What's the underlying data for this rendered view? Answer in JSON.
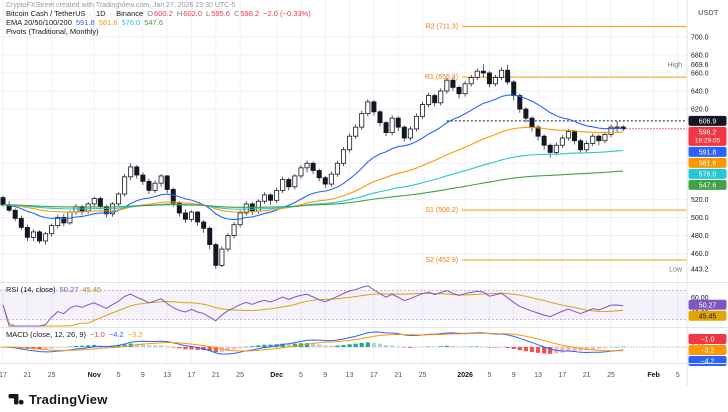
{
  "watermark": "CryptoFXStreet created with TradingView.com, Jan 27, 2026 23:30 UTC-5",
  "quote_label": "USDT",
  "colors": {
    "negative": "#f23645",
    "candle": "#131722",
    "pivot": "#ff9800"
  },
  "legend": {
    "symbol": {
      "title": "Bitcoin Cash / TetherUS",
      "separator": "·",
      "interval": "1D",
      "exchange": "Binance",
      "ohlc": [
        {
          "label": "O",
          "value": "600.2"
        },
        {
          "label": "H",
          "value": "602.0"
        },
        {
          "label": "L",
          "value": "595.6"
        },
        {
          "label": "C",
          "value": "598.2"
        }
      ],
      "change": "−2.0 (−0.33%)"
    },
    "ema": {
      "name": "EMA 20/50/100/200",
      "values": [
        {
          "text": "591.8",
          "color": "#2962ff"
        },
        {
          "text": "581.6",
          "color": "#ff9800"
        },
        {
          "text": "576.0",
          "color": "#26c6da"
        },
        {
          "text": "547.6",
          "color": "#43a047"
        }
      ]
    },
    "pivots": {
      "name": "Pivots (Traditional, Monthly)"
    }
  },
  "rsi_legend": {
    "name": "RSI (14, close)",
    "value": "50.27",
    "value_color": "#7e57c2",
    "ma_value": "45.45",
    "ma_color": "#b8860b"
  },
  "macd_legend": {
    "name": "MACD (close, 12, 26, 9)",
    "hist": "−1.0",
    "hist_color": "#f23645",
    "macd": "−4.2",
    "macd_color": "#2962ff",
    "signal": "−3.2",
    "signal_color": "#ff9800"
  },
  "logo": {
    "text": "TradingView"
  },
  "chart_data": {
    "type": "candlestick",
    "title": "Bitcoin Cash / TetherUS, 1D, Binance",
    "x_total_slots": 113,
    "x_ticks": [
      {
        "i": 0,
        "label": "17"
      },
      {
        "i": 4,
        "label": "21"
      },
      {
        "i": 8,
        "label": "25"
      },
      {
        "i": 15,
        "label": "Nov",
        "strong": true
      },
      {
        "i": 19,
        "label": "5"
      },
      {
        "i": 23,
        "label": "9"
      },
      {
        "i": 27,
        "label": "13"
      },
      {
        "i": 31,
        "label": "17"
      },
      {
        "i": 35,
        "label": "21"
      },
      {
        "i": 39,
        "label": "25"
      },
      {
        "i": 45,
        "label": "Dec",
        "strong": true
      },
      {
        "i": 49,
        "label": "5"
      },
      {
        "i": 53,
        "label": "9"
      },
      {
        "i": 57,
        "label": "13"
      },
      {
        "i": 61,
        "label": "17"
      },
      {
        "i": 65,
        "label": "21"
      },
      {
        "i": 69,
        "label": "25"
      },
      {
        "i": 76,
        "label": "2026",
        "strong": true
      },
      {
        "i": 80,
        "label": "5"
      },
      {
        "i": 84,
        "label": "9"
      },
      {
        "i": 88,
        "label": "13"
      },
      {
        "i": 92,
        "label": "17"
      },
      {
        "i": 96,
        "label": "21"
      },
      {
        "i": 100,
        "label": "25"
      },
      {
        "i": 107,
        "label": "Feb",
        "strong": true
      },
      {
        "i": 111,
        "label": "5"
      }
    ],
    "y_domain": [
      433,
      712
    ],
    "y_ticks": [
      700,
      680,
      660,
      640,
      620,
      560,
      520,
      500,
      480,
      460
    ],
    "high": {
      "label": "High",
      "value": 669.6,
      "text": "669.6"
    },
    "low": {
      "label": "Low",
      "value": 443.2,
      "text": "443.2"
    },
    "last_price": {
      "value": 598.2,
      "text": "598.2",
      "countdown": "19:29:05",
      "direction": "down"
    },
    "dotted_level": {
      "value": 606.9,
      "text": "606.9",
      "from_index": 73
    },
    "pivot_levels": [
      {
        "label": "R2 (711.3)",
        "value": 711.3
      },
      {
        "label": "R1 (655.4)",
        "value": 655.4
      },
      {
        "label": "S1 (508.2)",
        "value": 508.2
      },
      {
        "label": "S2 (452.9)",
        "value": 452.9
      }
    ],
    "pivot_start_index": 76,
    "ema_periods": [
      20,
      50,
      100,
      200
    ],
    "ema_badges": [
      {
        "text": "591.8",
        "value": 591.8,
        "color": "#2962ff"
      },
      {
        "text": "581.6",
        "value": 581.6,
        "color": "#ff9800"
      },
      {
        "text": "576.0",
        "value": 576.0,
        "color": "#26c6da"
      },
      {
        "text": "547.6",
        "value": 547.6,
        "color": "#43a047"
      }
    ],
    "candles": [
      [
        522,
        524,
        512,
        514
      ],
      [
        514,
        518,
        506,
        508
      ],
      [
        508,
        510,
        496,
        499
      ],
      [
        499,
        502,
        486,
        489
      ],
      [
        489,
        492,
        474,
        478
      ],
      [
        478,
        487,
        474,
        484
      ],
      [
        484,
        486,
        471,
        474
      ],
      [
        474,
        484,
        470,
        482
      ],
      [
        482,
        493,
        479,
        491
      ],
      [
        491,
        503,
        488,
        500
      ],
      [
        500,
        504,
        490,
        494
      ],
      [
        494,
        508,
        492,
        506
      ],
      [
        506,
        515,
        503,
        512
      ],
      [
        512,
        514,
        503,
        507
      ],
      [
        507,
        517,
        504,
        515
      ],
      [
        515,
        523,
        511,
        521
      ],
      [
        521,
        523,
        509,
        512
      ],
      [
        512,
        514,
        500,
        504
      ],
      [
        504,
        517,
        501,
        515
      ],
      [
        515,
        528,
        512,
        526
      ],
      [
        526,
        548,
        523,
        545
      ],
      [
        545,
        560,
        541,
        556
      ],
      [
        556,
        558,
        543,
        547
      ],
      [
        547,
        550,
        536,
        540
      ],
      [
        540,
        543,
        526,
        530
      ],
      [
        530,
        541,
        527,
        538
      ],
      [
        538,
        548,
        534,
        546
      ],
      [
        546,
        547,
        527,
        531
      ],
      [
        531,
        533,
        512,
        516
      ],
      [
        516,
        518,
        501,
        505
      ],
      [
        505,
        509,
        494,
        498
      ],
      [
        498,
        508,
        495,
        506
      ],
      [
        506,
        507,
        491,
        495
      ],
      [
        495,
        497,
        483,
        488
      ],
      [
        488,
        490,
        465,
        470
      ],
      [
        470,
        472,
        443.2,
        447
      ],
      [
        447,
        468,
        445,
        465
      ],
      [
        465,
        483,
        462,
        480
      ],
      [
        480,
        495,
        477,
        492
      ],
      [
        492,
        508,
        489,
        505
      ],
      [
        505,
        518,
        502,
        515
      ],
      [
        515,
        517,
        503,
        507
      ],
      [
        507,
        520,
        504,
        518
      ],
      [
        518,
        528,
        515,
        525
      ],
      [
        525,
        527,
        514,
        519
      ],
      [
        519,
        533,
        516,
        530
      ],
      [
        530,
        545,
        527,
        542
      ],
      [
        542,
        544,
        530,
        534
      ],
      [
        534,
        548,
        531,
        546
      ],
      [
        546,
        558,
        543,
        555
      ],
      [
        555,
        563,
        550,
        560
      ],
      [
        560,
        562,
        548,
        552
      ],
      [
        552,
        554,
        540,
        544
      ],
      [
        544,
        546,
        533,
        537
      ],
      [
        537,
        551,
        534,
        548
      ],
      [
        548,
        563,
        545,
        560
      ],
      [
        560,
        578,
        557,
        575
      ],
      [
        575,
        593,
        572,
        590
      ],
      [
        590,
        603,
        587,
        600
      ],
      [
        600,
        618,
        597,
        615
      ],
      [
        615,
        631,
        612,
        628
      ],
      [
        628,
        630,
        613,
        617
      ],
      [
        617,
        619,
        601,
        605
      ],
      [
        605,
        607,
        590,
        594
      ],
      [
        594,
        613,
        591,
        610
      ],
      [
        610,
        612,
        596,
        600
      ],
      [
        600,
        602,
        584,
        588
      ],
      [
        588,
        601,
        585,
        598
      ],
      [
        598,
        615,
        595,
        612
      ],
      [
        612,
        628,
        609,
        625
      ],
      [
        625,
        638,
        622,
        635
      ],
      [
        635,
        637,
        623,
        627
      ],
      [
        627,
        643,
        624,
        640
      ],
      [
        640,
        655,
        637,
        652
      ],
      [
        652,
        654,
        640,
        644
      ],
      [
        644,
        646,
        632,
        637
      ],
      [
        637,
        651,
        634,
        648
      ],
      [
        648,
        658,
        645,
        655
      ],
      [
        655,
        665,
        652,
        662
      ],
      [
        662,
        669.6,
        655,
        660
      ],
      [
        660,
        662,
        644,
        648
      ],
      [
        648,
        658,
        645,
        655
      ],
      [
        655,
        666,
        652,
        663
      ],
      [
        663,
        669,
        647,
        650
      ],
      [
        650,
        652,
        630,
        635
      ],
      [
        635,
        637,
        616,
        620
      ],
      [
        620,
        622,
        605,
        610
      ],
      [
        610,
        612,
        595,
        600
      ],
      [
        600,
        602,
        585,
        590
      ],
      [
        590,
        592,
        575,
        580
      ],
      [
        580,
        582,
        566,
        572
      ],
      [
        572,
        583,
        569,
        580
      ],
      [
        580,
        591,
        577,
        588
      ],
      [
        588,
        598,
        585,
        595
      ],
      [
        595,
        597,
        581,
        585
      ],
      [
        585,
        587,
        571,
        575
      ],
      [
        575,
        585,
        572,
        582
      ],
      [
        582,
        593,
        579,
        590
      ],
      [
        590,
        592,
        580,
        585
      ],
      [
        585,
        595,
        582,
        592
      ],
      [
        592,
        603,
        589,
        600
      ],
      [
        600,
        606.9,
        594,
        600.2
      ],
      [
        600.2,
        602,
        595.6,
        598.2
      ]
    ],
    "rsi": {
      "period": 14,
      "ma_period": 14,
      "upper_band": 70,
      "lower_band": 30,
      "axis_ticks": [
        {
          "v": 60,
          "label": "60.00"
        },
        {
          "v": 40,
          "label": "40.00"
        }
      ],
      "badges": [
        {
          "text": "50.27",
          "v": 50.27,
          "color": "#7e57c2",
          "fg": "#ffffff"
        },
        {
          "text": "45.45",
          "v": 45.45,
          "color": "#e2a400",
          "fg": "#131722"
        }
      ]
    },
    "macd": {
      "fast": 12,
      "slow": 26,
      "signal_period": 9,
      "axis_ticks": [
        {
          "v": 0,
          "label": "0.00"
        }
      ],
      "badges": [
        {
          "text": "−1.0",
          "v": -1.0,
          "color": "#f23645"
        },
        {
          "text": "−3.2",
          "v": -3.2,
          "color": "#ff9800"
        },
        {
          "text": "−4.2",
          "v": -4.2,
          "color": "#2962ff"
        }
      ]
    }
  }
}
